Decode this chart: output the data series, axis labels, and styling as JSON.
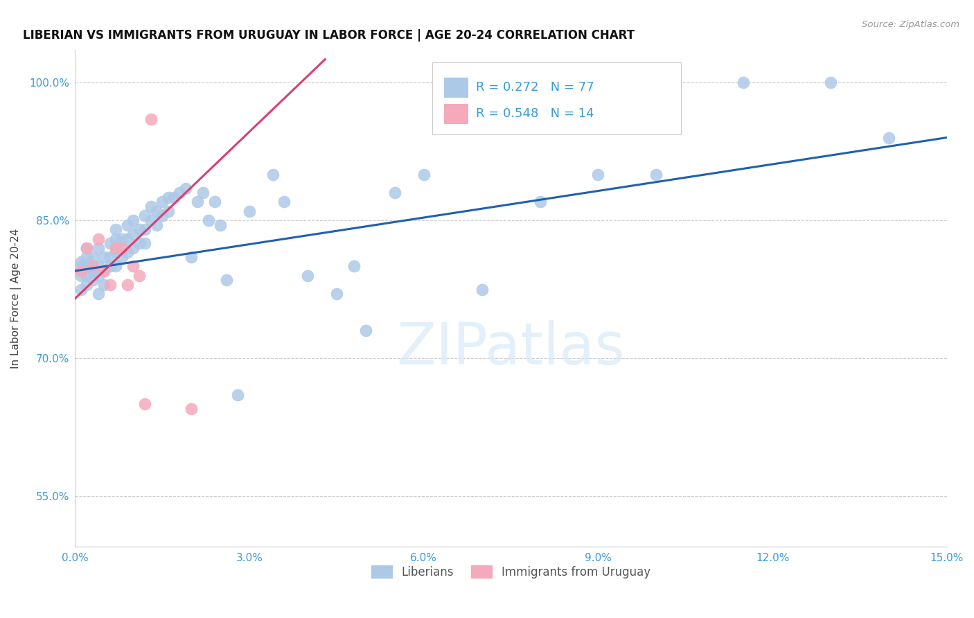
{
  "title": "LIBERIAN VS IMMIGRANTS FROM URUGUAY IN LABOR FORCE | AGE 20-24 CORRELATION CHART",
  "source": "Source: ZipAtlas.com",
  "ylabel": "In Labor Force | Age 20-24",
  "xlim": [
    0.0,
    0.15
  ],
  "ylim": [
    0.495,
    1.035
  ],
  "xticks": [
    0.0,
    0.03,
    0.06,
    0.09,
    0.12,
    0.15
  ],
  "xtick_labels": [
    "0.0%",
    "3.0%",
    "6.0%",
    "9.0%",
    "12.0%",
    "15.0%"
  ],
  "yticks": [
    0.55,
    0.7,
    0.85,
    1.0
  ],
  "ytick_labels": [
    "55.0%",
    "70.0%",
    "85.0%",
    "100.0%"
  ],
  "r_blue": 0.272,
  "n_blue": 77,
  "r_pink": 0.548,
  "n_pink": 14,
  "blue_color": "#adc9e8",
  "pink_color": "#f5aabb",
  "blue_line_color": "#2060b0",
  "pink_line_color": "#d84070",
  "legend_label_blue": "Liberians",
  "legend_label_pink": "Immigrants from Uruguay",
  "watermark": "ZIPatlas",
  "blue_scatter_x": [
    0.001,
    0.001,
    0.001,
    0.001,
    0.002,
    0.002,
    0.002,
    0.002,
    0.002,
    0.003,
    0.003,
    0.003,
    0.003,
    0.003,
    0.004,
    0.004,
    0.004,
    0.004,
    0.005,
    0.005,
    0.005,
    0.006,
    0.006,
    0.006,
    0.007,
    0.007,
    0.007,
    0.007,
    0.008,
    0.008,
    0.008,
    0.009,
    0.009,
    0.009,
    0.01,
    0.01,
    0.01,
    0.011,
    0.011,
    0.012,
    0.012,
    0.012,
    0.013,
    0.013,
    0.014,
    0.014,
    0.015,
    0.015,
    0.016,
    0.016,
    0.017,
    0.018,
    0.019,
    0.02,
    0.021,
    0.022,
    0.023,
    0.024,
    0.025,
    0.026,
    0.028,
    0.03,
    0.034,
    0.036,
    0.04,
    0.045,
    0.048,
    0.05,
    0.055,
    0.06,
    0.07,
    0.08,
    0.09,
    0.1,
    0.115,
    0.13,
    0.14
  ],
  "blue_scatter_y": [
    0.8,
    0.805,
    0.79,
    0.775,
    0.8,
    0.81,
    0.82,
    0.79,
    0.78,
    0.81,
    0.8,
    0.785,
    0.8,
    0.795,
    0.82,
    0.8,
    0.79,
    0.77,
    0.81,
    0.795,
    0.78,
    0.825,
    0.81,
    0.8,
    0.84,
    0.83,
    0.815,
    0.8,
    0.83,
    0.82,
    0.81,
    0.845,
    0.83,
    0.815,
    0.85,
    0.835,
    0.82,
    0.84,
    0.825,
    0.855,
    0.84,
    0.825,
    0.865,
    0.85,
    0.86,
    0.845,
    0.87,
    0.855,
    0.875,
    0.86,
    0.875,
    0.88,
    0.885,
    0.81,
    0.87,
    0.88,
    0.85,
    0.87,
    0.845,
    0.785,
    0.66,
    0.86,
    0.9,
    0.87,
    0.79,
    0.77,
    0.8,
    0.73,
    0.88,
    0.9,
    0.775,
    0.87,
    0.9,
    0.9,
    1.0,
    1.0,
    0.94
  ],
  "pink_scatter_x": [
    0.001,
    0.002,
    0.003,
    0.004,
    0.005,
    0.006,
    0.007,
    0.008,
    0.009,
    0.01,
    0.011,
    0.012,
    0.013,
    0.02
  ],
  "pink_scatter_y": [
    0.795,
    0.82,
    0.8,
    0.83,
    0.795,
    0.78,
    0.82,
    0.82,
    0.78,
    0.8,
    0.79,
    0.65,
    0.96,
    0.645
  ],
  "blue_line_x0": 0.0,
  "blue_line_x1": 0.15,
  "blue_line_y0": 0.795,
  "blue_line_y1": 0.94,
  "pink_line_x0": 0.0,
  "pink_line_x1": 0.043,
  "pink_line_y0": 0.765,
  "pink_line_y1": 1.025
}
